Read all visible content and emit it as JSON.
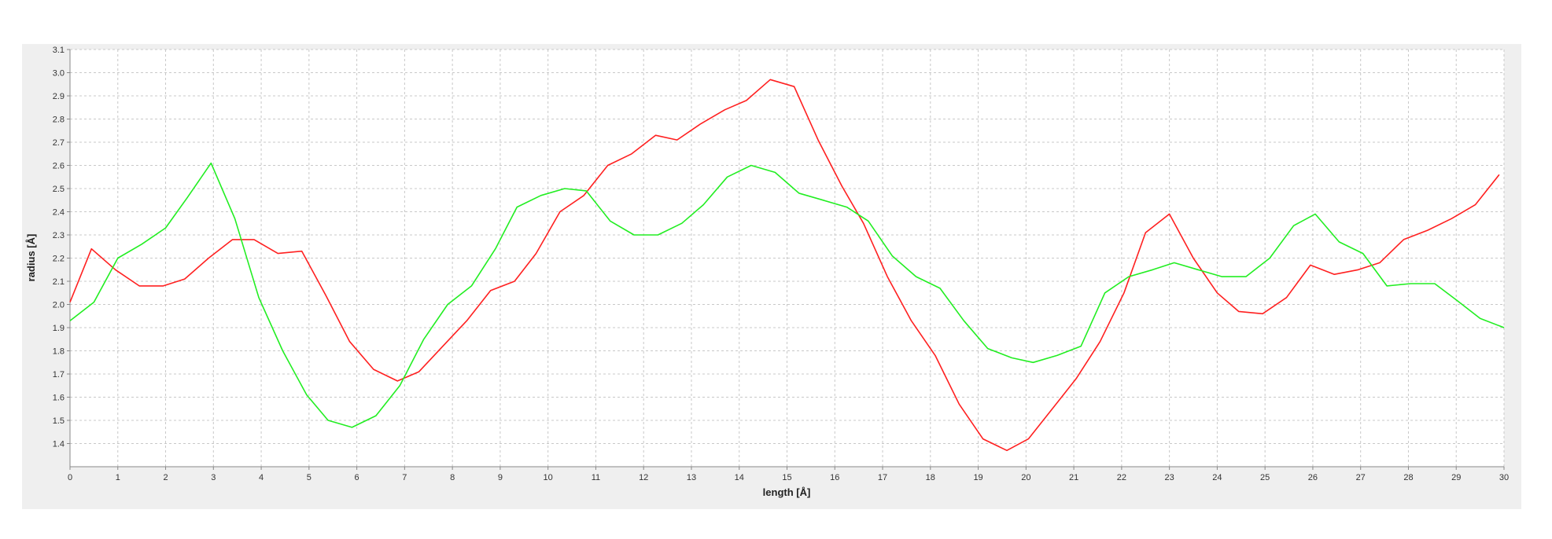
{
  "chart_data": {
    "type": "line",
    "xlabel": "length [Å]",
    "ylabel": "radius [Å]",
    "xlim": [
      0,
      30
    ],
    "ylim": [
      1.3,
      3.1
    ],
    "x_ticks": [
      "0",
      "1",
      "2",
      "3",
      "4",
      "5",
      "6",
      "7",
      "8",
      "9",
      "10",
      "11",
      "12",
      "13",
      "14",
      "15",
      "16",
      "17",
      "18",
      "19",
      "20",
      "21",
      "22",
      "23",
      "24",
      "25",
      "26",
      "27",
      "28",
      "29",
      "30"
    ],
    "y_ticks": [
      "1.4",
      "1.5",
      "1.6",
      "1.7",
      "1.8",
      "1.9",
      "2.0",
      "2.1",
      "2.2",
      "2.3",
      "2.4",
      "2.5",
      "2.6",
      "2.7",
      "2.8",
      "2.9",
      "3.0",
      "3.1"
    ],
    "grid": true,
    "series": [
      {
        "color": "#ff2020",
        "x": [
          0,
          0.45,
          0.95,
          1.45,
          1.95,
          2.4,
          2.9,
          3.4,
          3.85,
          4.35,
          4.85,
          5.35,
          5.85,
          6.35,
          6.85,
          7.3,
          7.8,
          8.3,
          8.8,
          9.3,
          9.75,
          10.25,
          10.75,
          11.25,
          11.75,
          12.25,
          12.7,
          13.2,
          13.7,
          14.15,
          14.65,
          15.15,
          15.65,
          16.15,
          16.6,
          17.1,
          17.6,
          18.1,
          18.6,
          19.1,
          19.6,
          20.05,
          20.55,
          21.05,
          21.55,
          22.05,
          22.5,
          23.0,
          23.5,
          24.0,
          24.45,
          24.95,
          25.45,
          25.95,
          26.45,
          26.95,
          27.4,
          27.9,
          28.4,
          28.9,
          29.4,
          29.9
        ],
        "y": [
          2.01,
          2.24,
          2.15,
          2.08,
          2.08,
          2.11,
          2.2,
          2.28,
          2.28,
          2.22,
          2.23,
          2.04,
          1.84,
          1.72,
          1.67,
          1.71,
          1.82,
          1.93,
          2.06,
          2.1,
          2.22,
          2.4,
          2.47,
          2.6,
          2.65,
          2.73,
          2.71,
          2.78,
          2.84,
          2.88,
          2.97,
          2.94,
          2.71,
          2.51,
          2.35,
          2.12,
          1.93,
          1.78,
          1.57,
          1.42,
          1.37,
          1.42,
          1.55,
          1.68,
          1.84,
          2.05,
          2.31,
          2.39,
          2.2,
          2.05,
          1.97,
          1.96,
          2.03,
          2.17,
          2.13,
          2.15,
          2.18,
          2.28,
          2.32,
          2.37,
          2.43,
          2.56
        ]
      },
      {
        "color": "#22ee22",
        "x": [
          0,
          0.5,
          1.0,
          1.5,
          2.0,
          2.45,
          2.95,
          3.45,
          3.95,
          4.45,
          4.95,
          5.4,
          5.9,
          6.4,
          6.9,
          7.4,
          7.9,
          8.4,
          8.9,
          9.35,
          9.85,
          10.35,
          10.8,
          11.3,
          11.8,
          12.3,
          12.8,
          13.25,
          13.75,
          14.25,
          14.75,
          15.25,
          15.75,
          16.25,
          16.7,
          17.2,
          17.7,
          18.2,
          18.7,
          19.2,
          19.7,
          20.15,
          20.65,
          21.15,
          21.65,
          22.15,
          22.65,
          23.1,
          23.6,
          24.1,
          24.6,
          25.1,
          25.6,
          26.05,
          26.55,
          27.05,
          27.55,
          28.05,
          28.55,
          29.0,
          29.5,
          30.0
        ],
        "y": [
          1.93,
          2.01,
          2.2,
          2.26,
          2.33,
          2.46,
          2.61,
          2.37,
          2.03,
          1.8,
          1.61,
          1.5,
          1.47,
          1.52,
          1.65,
          1.85,
          2.0,
          2.08,
          2.24,
          2.42,
          2.47,
          2.5,
          2.49,
          2.36,
          2.3,
          2.3,
          2.35,
          2.43,
          2.55,
          2.6,
          2.57,
          2.48,
          2.45,
          2.42,
          2.36,
          2.21,
          2.12,
          2.07,
          1.93,
          1.81,
          1.77,
          1.75,
          1.78,
          1.82,
          2.05,
          2.12,
          2.15,
          2.18,
          2.15,
          2.12,
          2.12,
          2.2,
          2.34,
          2.39,
          2.27,
          2.22,
          2.08,
          2.09,
          2.09,
          2.02,
          1.94,
          1.9
        ]
      }
    ]
  }
}
